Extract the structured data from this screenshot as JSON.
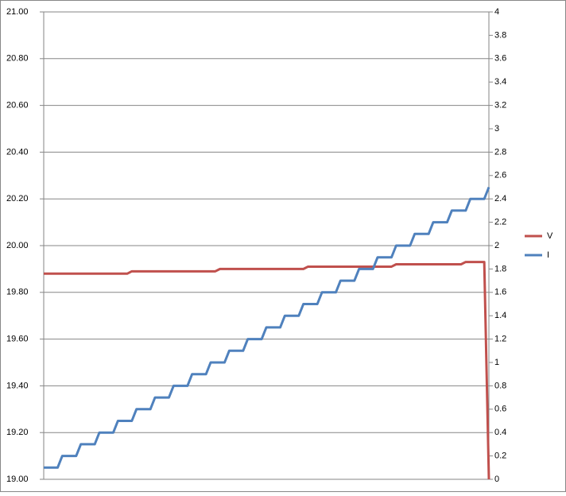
{
  "chart_data": {
    "type": "line",
    "categories": [
      null,
      null,
      null,
      null,
      null,
      null,
      null,
      null,
      null,
      null,
      null,
      null,
      null,
      null,
      null,
      null,
      null,
      null,
      null,
      null,
      null,
      null,
      null,
      null,
      null,
      null,
      null,
      null,
      null,
      null,
      null,
      null,
      null,
      null,
      null,
      null,
      null,
      null,
      null,
      null,
      null,
      null,
      null,
      null,
      null,
      null,
      null,
      null,
      null,
      null,
      null,
      null,
      null,
      null,
      null,
      null,
      null,
      null,
      null,
      null,
      null,
      null,
      null,
      null,
      null,
      null,
      null,
      null,
      null,
      null,
      null,
      null,
      null,
      null,
      null,
      null,
      null,
      null,
      null,
      null,
      null,
      null,
      null,
      null,
      null,
      null,
      null,
      null,
      null,
      null,
      null,
      null,
      null,
      null,
      null,
      null,
      null
    ],
    "series": [
      {
        "name": "V",
        "color": "#c0504d",
        "values": [
          19.88,
          19.88,
          19.88,
          19.88,
          19.88,
          19.88,
          19.88,
          19.88,
          19.88,
          19.88,
          19.88,
          19.88,
          19.88,
          19.88,
          19.88,
          19.88,
          19.88,
          19.88,
          19.88,
          19.89,
          19.89,
          19.89,
          19.89,
          19.89,
          19.89,
          19.89,
          19.89,
          19.89,
          19.89,
          19.89,
          19.89,
          19.89,
          19.89,
          19.89,
          19.89,
          19.89,
          19.89,
          19.89,
          19.9,
          19.9,
          19.9,
          19.9,
          19.9,
          19.9,
          19.9,
          19.9,
          19.9,
          19.9,
          19.9,
          19.9,
          19.9,
          19.9,
          19.9,
          19.9,
          19.9,
          19.9,
          19.9,
          19.91,
          19.91,
          19.91,
          19.91,
          19.91,
          19.91,
          19.91,
          19.91,
          19.91,
          19.91,
          19.91,
          19.91,
          19.91,
          19.91,
          19.91,
          19.91,
          19.91,
          19.91,
          19.91,
          19.92,
          19.92,
          19.92,
          19.92,
          19.92,
          19.92,
          19.92,
          19.92,
          19.92,
          19.92,
          19.92,
          19.92,
          19.92,
          19.92,
          19.92,
          19.93,
          19.93,
          19.93,
          19.93,
          19.93,
          19.0
        ]
      },
      {
        "name": "I",
        "color": "#4f81bd",
        "axis": "y2",
        "values": [
          0.1,
          0.1,
          0.1,
          0.1,
          0.2,
          0.2,
          0.2,
          0.2,
          0.3,
          0.3,
          0.3,
          0.3,
          0.4,
          0.4,
          0.4,
          0.4,
          0.5,
          0.5,
          0.5,
          0.5,
          0.6,
          0.6,
          0.6,
          0.6,
          0.7,
          0.7,
          0.7,
          0.7,
          0.8,
          0.8,
          0.8,
          0.8,
          0.9,
          0.9,
          0.9,
          0.9,
          1.0,
          1.0,
          1.0,
          1.0,
          1.1,
          1.1,
          1.1,
          1.1,
          1.2,
          1.2,
          1.2,
          1.2,
          1.3,
          1.3,
          1.3,
          1.3,
          1.4,
          1.4,
          1.4,
          1.4,
          1.5,
          1.5,
          1.5,
          1.5,
          1.6,
          1.6,
          1.6,
          1.6,
          1.7,
          1.7,
          1.7,
          1.7,
          1.8,
          1.8,
          1.8,
          1.8,
          1.9,
          1.9,
          1.9,
          1.9,
          2.0,
          2.0,
          2.0,
          2.0,
          2.1,
          2.1,
          2.1,
          2.1,
          2.2,
          2.2,
          2.2,
          2.2,
          2.3,
          2.3,
          2.3,
          2.3,
          2.4,
          2.4,
          2.4,
          2.4,
          2.5
        ]
      }
    ],
    "ylim": [
      19,
      21
    ],
    "yticks": [
      {
        "value": 19,
        "label": "19.00"
      },
      {
        "value": 19.2,
        "label": "19.20"
      },
      {
        "value": 19.4,
        "label": "19.40"
      },
      {
        "value": 19.6,
        "label": "19.60"
      },
      {
        "value": 19.8,
        "label": "19.80"
      },
      {
        "value": 20,
        "label": "20.00"
      },
      {
        "value": 20.2,
        "label": "20.20"
      },
      {
        "value": 20.4,
        "label": "20.40"
      },
      {
        "value": 20.6,
        "label": "20.60"
      },
      {
        "value": 20.8,
        "label": "20.80"
      },
      {
        "value": 21,
        "label": "21.00"
      }
    ],
    "y2lim": [
      0,
      4
    ],
    "y2ticks": [
      0,
      0.2,
      0.4,
      0.6,
      0.8,
      1,
      1.2,
      1.4,
      1.6,
      1.8,
      2,
      2.2,
      2.4,
      2.6,
      2.8,
      3,
      3.2,
      3.4,
      3.6,
      3.8,
      4
    ],
    "grid": true,
    "legend": "right"
  }
}
